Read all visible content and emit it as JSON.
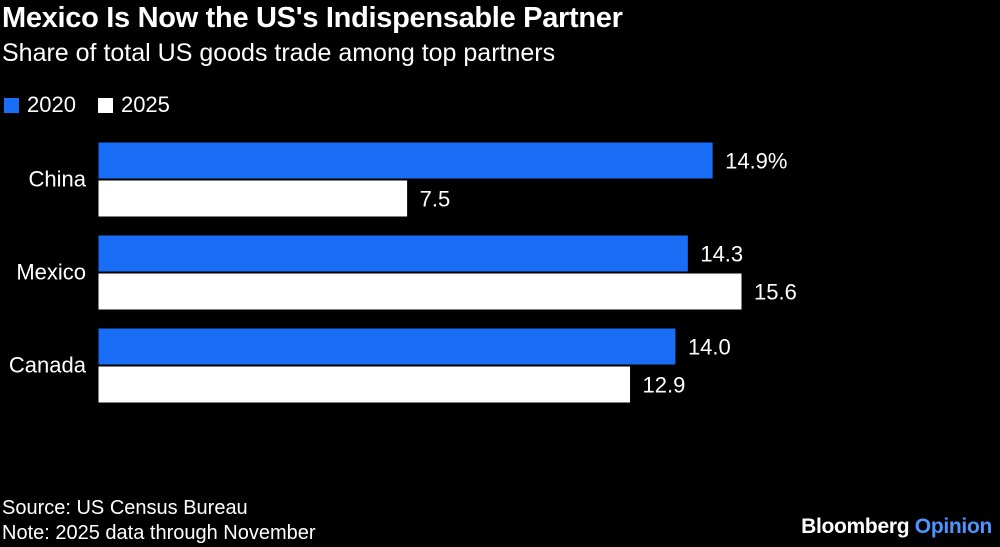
{
  "header": {
    "title": "Mexico Is Now the US's Indispensable Partner",
    "subtitle": "Share of total US goods trade among top partners"
  },
  "legend": [
    {
      "label": "2020",
      "color": "#1a6ef5"
    },
    {
      "label": "2025",
      "color": "#ffffff"
    }
  ],
  "chart_data": {
    "type": "bar",
    "orientation": "horizontal",
    "title": "Mexico Is Now the US's Indispensable Partner",
    "subtitle": "Share of total US goods trade among top partners",
    "categories": [
      "China",
      "Mexico",
      "Canada"
    ],
    "series": [
      {
        "name": "2020",
        "color": "#1a6ef5",
        "values": [
          14.9,
          14.3,
          14.0
        ],
        "labels": [
          "14.9%",
          "14.3",
          "14.0"
        ]
      },
      {
        "name": "2025",
        "color": "#ffffff",
        "values": [
          7.5,
          15.6,
          12.9
        ],
        "labels": [
          "7.5",
          "15.6",
          "12.9"
        ]
      }
    ],
    "xlim": [
      0,
      15.6
    ],
    "xlabel": "",
    "ylabel": "",
    "grid": false,
    "legend_position": "top-left"
  },
  "footer": {
    "source": "Source: US Census Bureau",
    "note": "Note: 2025 data through November"
  },
  "brand": {
    "name": "Bloomberg",
    "suffix": "Opinion",
    "suffix_color": "#4d94ff"
  }
}
